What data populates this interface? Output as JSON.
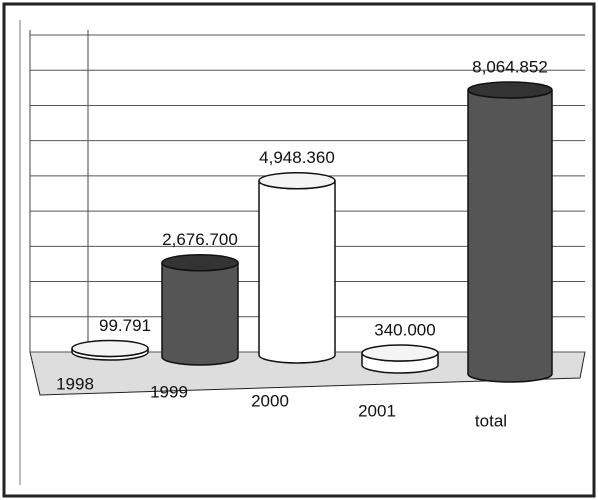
{
  "chart_data": {
    "type": "bar",
    "categories": [
      "1998",
      "1999",
      "2000",
      "2001",
      "total"
    ],
    "values": [
      99.791,
      2676.7,
      4948.36,
      340,
      8064.852
    ],
    "value_labels": [
      "99.791",
      "2,676.700",
      "4,948.360",
      "340.000",
      "8,064.852"
    ],
    "colors": [
      "#ffffff",
      "#555555",
      "#ffffff",
      "#ffffff",
      "#555555"
    ],
    "ylim": [
      0,
      9000
    ],
    "yticks": [
      0,
      1000,
      2000,
      3000,
      4000,
      5000,
      6000,
      7000,
      8000,
      9000
    ],
    "grid": true
  }
}
